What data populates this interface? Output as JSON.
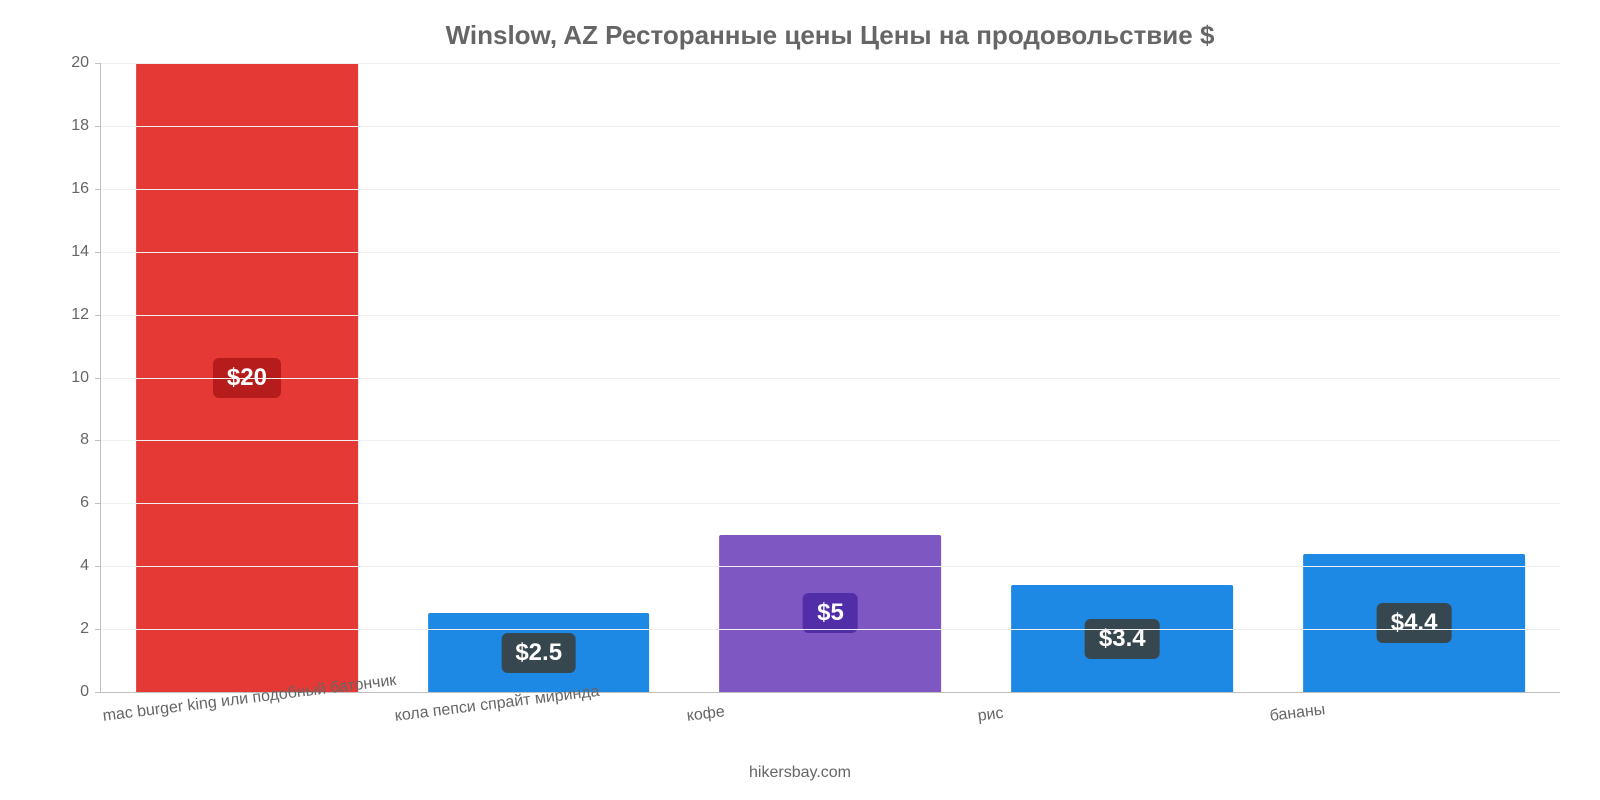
{
  "chart": {
    "type": "bar",
    "title": "Winslow, AZ Ресторанные цены Цены на продовольствие $",
    "title_fontsize": 26,
    "title_color": "#666666",
    "footer": "hikersbay.com",
    "footer_fontsize": 16,
    "footer_color": "#666666",
    "background_color": "#ffffff",
    "grid_color": "#f0f0f0",
    "axis_color": "#c0c0c0",
    "tick_color": "#666666",
    "tick_fontsize": 16,
    "xlabel_fontsize": 16,
    "xlabel_rotate_deg": -7,
    "ylim": [
      0,
      20
    ],
    "ytick_step": 2,
    "yticks": [
      0,
      2,
      4,
      6,
      8,
      10,
      12,
      14,
      16,
      18,
      20
    ],
    "bar_width_pct": 76,
    "value_prefix": "$",
    "value_badge_bg": "#37474f",
    "value_badge_bg_first": "#b71c1c",
    "value_badge_bg_mid": "#512da8",
    "value_badge_fontsize": 24,
    "value_badge_radius": 6,
    "categories": [
      "mac burger king или подобный батончик",
      "кола пепси спрайт миринда",
      "кофе",
      "рис",
      "бананы"
    ],
    "values": [
      20,
      2.5,
      5,
      3.4,
      4.4
    ],
    "display_values": [
      "$20",
      "$2.5",
      "$5",
      "$3.4",
      "$4.4"
    ],
    "bar_colors": [
      "#e53935",
      "#1e88e5",
      "#7e57c2",
      "#1e88e5",
      "#1e88e5"
    ],
    "badge_colors": [
      "#b71c1c",
      "#37474f",
      "#512da8",
      "#37474f",
      "#37474f"
    ]
  }
}
